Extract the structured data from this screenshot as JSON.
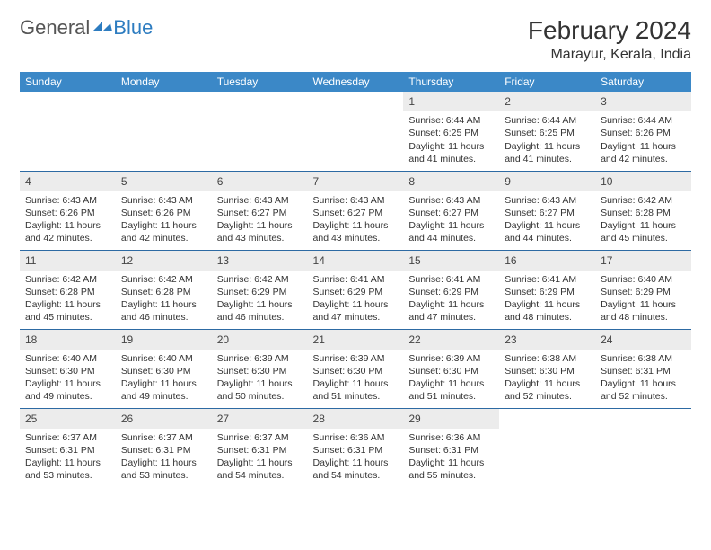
{
  "logo": {
    "text1": "General",
    "text2": "Blue"
  },
  "title": "February 2024",
  "location": "Marayur, Kerala, India",
  "colors": {
    "header_bg": "#3b88c7",
    "header_text": "#ffffff",
    "row_divider": "#2d6aa3",
    "daynum_bg": "#ececec",
    "text": "#333333",
    "logo_icon": "#2d7cc0"
  },
  "day_headers": [
    "Sunday",
    "Monday",
    "Tuesday",
    "Wednesday",
    "Thursday",
    "Friday",
    "Saturday"
  ],
  "weeks": [
    [
      null,
      null,
      null,
      null,
      {
        "n": "1",
        "sr": "6:44 AM",
        "ss": "6:25 PM",
        "dl": "11 hours and 41 minutes."
      },
      {
        "n": "2",
        "sr": "6:44 AM",
        "ss": "6:25 PM",
        "dl": "11 hours and 41 minutes."
      },
      {
        "n": "3",
        "sr": "6:44 AM",
        "ss": "6:26 PM",
        "dl": "11 hours and 42 minutes."
      }
    ],
    [
      {
        "n": "4",
        "sr": "6:43 AM",
        "ss": "6:26 PM",
        "dl": "11 hours and 42 minutes."
      },
      {
        "n": "5",
        "sr": "6:43 AM",
        "ss": "6:26 PM",
        "dl": "11 hours and 42 minutes."
      },
      {
        "n": "6",
        "sr": "6:43 AM",
        "ss": "6:27 PM",
        "dl": "11 hours and 43 minutes."
      },
      {
        "n": "7",
        "sr": "6:43 AM",
        "ss": "6:27 PM",
        "dl": "11 hours and 43 minutes."
      },
      {
        "n": "8",
        "sr": "6:43 AM",
        "ss": "6:27 PM",
        "dl": "11 hours and 44 minutes."
      },
      {
        "n": "9",
        "sr": "6:43 AM",
        "ss": "6:27 PM",
        "dl": "11 hours and 44 minutes."
      },
      {
        "n": "10",
        "sr": "6:42 AM",
        "ss": "6:28 PM",
        "dl": "11 hours and 45 minutes."
      }
    ],
    [
      {
        "n": "11",
        "sr": "6:42 AM",
        "ss": "6:28 PM",
        "dl": "11 hours and 45 minutes."
      },
      {
        "n": "12",
        "sr": "6:42 AM",
        "ss": "6:28 PM",
        "dl": "11 hours and 46 minutes."
      },
      {
        "n": "13",
        "sr": "6:42 AM",
        "ss": "6:29 PM",
        "dl": "11 hours and 46 minutes."
      },
      {
        "n": "14",
        "sr": "6:41 AM",
        "ss": "6:29 PM",
        "dl": "11 hours and 47 minutes."
      },
      {
        "n": "15",
        "sr": "6:41 AM",
        "ss": "6:29 PM",
        "dl": "11 hours and 47 minutes."
      },
      {
        "n": "16",
        "sr": "6:41 AM",
        "ss": "6:29 PM",
        "dl": "11 hours and 48 minutes."
      },
      {
        "n": "17",
        "sr": "6:40 AM",
        "ss": "6:29 PM",
        "dl": "11 hours and 48 minutes."
      }
    ],
    [
      {
        "n": "18",
        "sr": "6:40 AM",
        "ss": "6:30 PM",
        "dl": "11 hours and 49 minutes."
      },
      {
        "n": "19",
        "sr": "6:40 AM",
        "ss": "6:30 PM",
        "dl": "11 hours and 49 minutes."
      },
      {
        "n": "20",
        "sr": "6:39 AM",
        "ss": "6:30 PM",
        "dl": "11 hours and 50 minutes."
      },
      {
        "n": "21",
        "sr": "6:39 AM",
        "ss": "6:30 PM",
        "dl": "11 hours and 51 minutes."
      },
      {
        "n": "22",
        "sr": "6:39 AM",
        "ss": "6:30 PM",
        "dl": "11 hours and 51 minutes."
      },
      {
        "n": "23",
        "sr": "6:38 AM",
        "ss": "6:30 PM",
        "dl": "11 hours and 52 minutes."
      },
      {
        "n": "24",
        "sr": "6:38 AM",
        "ss": "6:31 PM",
        "dl": "11 hours and 52 minutes."
      }
    ],
    [
      {
        "n": "25",
        "sr": "6:37 AM",
        "ss": "6:31 PM",
        "dl": "11 hours and 53 minutes."
      },
      {
        "n": "26",
        "sr": "6:37 AM",
        "ss": "6:31 PM",
        "dl": "11 hours and 53 minutes."
      },
      {
        "n": "27",
        "sr": "6:37 AM",
        "ss": "6:31 PM",
        "dl": "11 hours and 54 minutes."
      },
      {
        "n": "28",
        "sr": "6:36 AM",
        "ss": "6:31 PM",
        "dl": "11 hours and 54 minutes."
      },
      {
        "n": "29",
        "sr": "6:36 AM",
        "ss": "6:31 PM",
        "dl": "11 hours and 55 minutes."
      },
      null,
      null
    ]
  ],
  "labels": {
    "sunrise": "Sunrise:",
    "sunset": "Sunset:",
    "daylight": "Daylight:"
  }
}
